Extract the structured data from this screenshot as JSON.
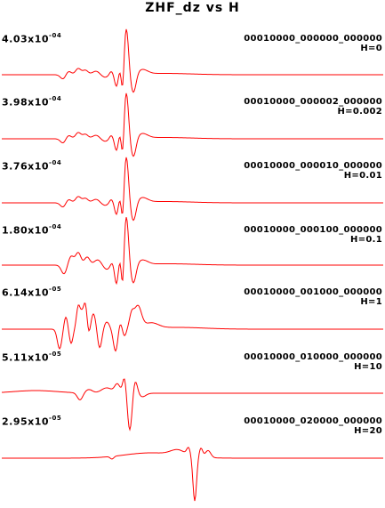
{
  "chart_data": {
    "type": "line",
    "title": "ZHF_dz vs H",
    "line_color": "#ff0000",
    "series": [
      {
        "name": "00010000_000000_000000",
        "param": "H=0",
        "amplitude": {
          "mantissa": "4.03x10",
          "exponent": "-04"
        }
      },
      {
        "name": "00010000_000002_000000",
        "param": "H=0.002",
        "amplitude": {
          "mantissa": "3.98x10",
          "exponent": "-04"
        }
      },
      {
        "name": "00010000_000010_000000",
        "param": "H=0.01",
        "amplitude": {
          "mantissa": "3.76x10",
          "exponent": "-04"
        }
      },
      {
        "name": "00010000_000100_000000",
        "param": "H=0.1",
        "amplitude": {
          "mantissa": "1.80x10",
          "exponent": "-04"
        }
      },
      {
        "name": "00010000_001000_000000",
        "param": "H=1",
        "amplitude": {
          "mantissa": "6.14x10",
          "exponent": "-05"
        }
      },
      {
        "name": "00010000_010000_000000",
        "param": "H=10",
        "amplitude": {
          "mantissa": "5.11x10",
          "exponent": "-05"
        }
      },
      {
        "name": "00010000_020000_000000",
        "param": "H=20",
        "amplitude": {
          "mantissa": "2.95x10",
          "exponent": "-05"
        }
      }
    ]
  }
}
